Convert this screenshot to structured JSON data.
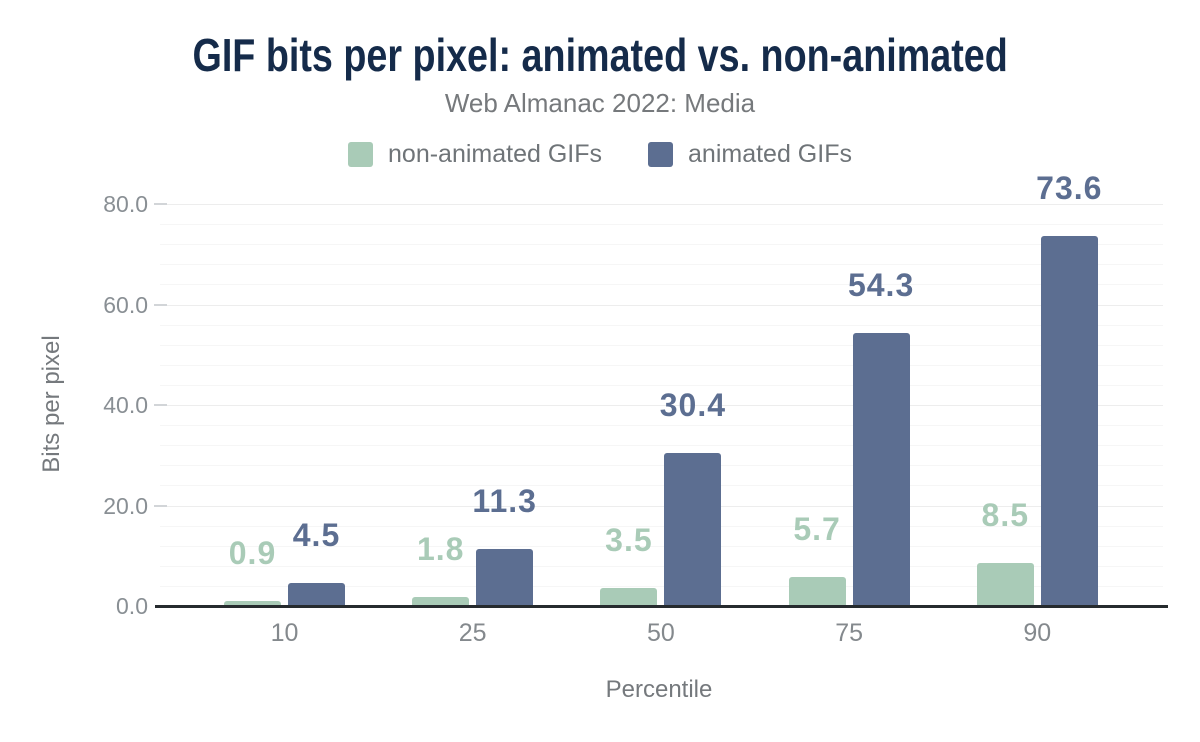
{
  "header": {
    "title": "GIF bits per pixel: animated vs. non-animated",
    "subtitle": "Web Almanac 2022: Media"
  },
  "legend": [
    {
      "label": "non-animated GIFs",
      "color_key": "non_animated"
    },
    {
      "label": "animated GIFs",
      "color_key": "animated"
    }
  ],
  "colors": {
    "title_navy": "#152b4a",
    "subtitle_gray": "#76797c",
    "legend_text": "#6f7478",
    "non_animated": "#a9cbb7",
    "animated": "#5c6e91",
    "axis_line": "#262b2e",
    "tick_label_gray": "#898f94",
    "axis_title_gray": "#75797d",
    "grid_major": "#ededed",
    "grid_minor": "#f6f6f6",
    "tick_dash": "#d2d5d8"
  },
  "chart_data": {
    "type": "bar",
    "title": "GIF bits per pixel: animated vs. non-animated",
    "subtitle": "Web Almanac 2022: Media",
    "categories": [
      "10",
      "25",
      "50",
      "75",
      "90"
    ],
    "series": [
      {
        "name": "non-animated GIFs",
        "values": [
          0.9,
          1.8,
          3.5,
          5.7,
          8.5
        ]
      },
      {
        "name": "animated GIFs",
        "values": [
          4.5,
          11.3,
          30.4,
          54.3,
          73.6
        ]
      }
    ],
    "data_labels": [
      [
        "0.9",
        "1.8",
        "3.5",
        "5.7",
        "8.5"
      ],
      [
        "4.5",
        "11.3",
        "30.4",
        "54.3",
        "73.6"
      ]
    ],
    "xlabel": "Percentile",
    "ylabel": "Bits per pixel",
    "ylim": [
      0,
      80
    ],
    "ytick_labels": [
      "0.0",
      "20.0",
      "40.0",
      "60.0",
      "80.0"
    ],
    "ytick_values": [
      0,
      20,
      40,
      60,
      80
    ],
    "minor_grid_step": 4,
    "major_grid_step": 20,
    "grid": true,
    "legend_position": "top"
  }
}
